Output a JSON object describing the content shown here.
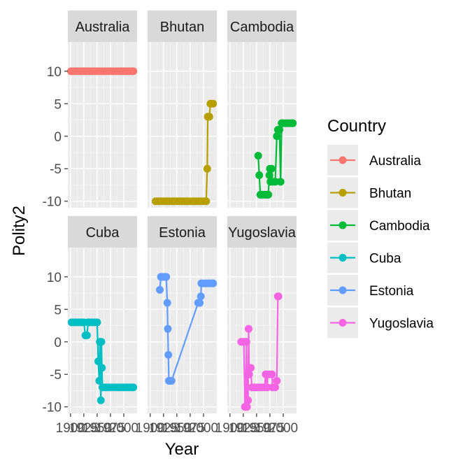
{
  "chart_data": {
    "type": "line",
    "facet_wrap": true,
    "xlabel": "Year",
    "ylabel": "Polity2",
    "xlim": [
      1895,
      2025
    ],
    "ylim": [
      -11,
      14.5
    ],
    "x_ticks": [
      1900,
      1925,
      1950,
      1975,
      2000
    ],
    "x_tick_labels": [
      "1900",
      "1925",
      "1950",
      "1975",
      "2000"
    ],
    "y_ticks": [
      -10,
      -5,
      0,
      5,
      10
    ],
    "y_tick_labels": [
      "-10",
      "-5",
      "0",
      "5",
      "10"
    ],
    "grid": true,
    "legend": {
      "title": "Country",
      "position": "right"
    },
    "series": [
      {
        "name": "Australia",
        "color": "#F8766D",
        "points": [
          [
            1901,
            10
          ],
          [
            1905,
            10
          ],
          [
            1910,
            10
          ],
          [
            1915,
            10
          ],
          [
            1920,
            10
          ],
          [
            1925,
            10
          ],
          [
            1930,
            10
          ],
          [
            1935,
            10
          ],
          [
            1940,
            10
          ],
          [
            1945,
            10
          ],
          [
            1950,
            10
          ],
          [
            1955,
            10
          ],
          [
            1960,
            10
          ],
          [
            1965,
            10
          ],
          [
            1970,
            10
          ],
          [
            1975,
            10
          ],
          [
            1980,
            10
          ],
          [
            1985,
            10
          ],
          [
            1990,
            10
          ],
          [
            1995,
            10
          ],
          [
            2000,
            10
          ],
          [
            2005,
            10
          ],
          [
            2010,
            10
          ],
          [
            2015,
            10
          ],
          [
            2018,
            10
          ]
        ]
      },
      {
        "name": "Bhutan",
        "color": "#B79F00",
        "points": [
          [
            1910,
            -10
          ],
          [
            1915,
            -10
          ],
          [
            1920,
            -10
          ],
          [
            1925,
            -10
          ],
          [
            1930,
            -10
          ],
          [
            1935,
            -10
          ],
          [
            1940,
            -10
          ],
          [
            1945,
            -10
          ],
          [
            1950,
            -10
          ],
          [
            1955,
            -10
          ],
          [
            1960,
            -10
          ],
          [
            1965,
            -10
          ],
          [
            1970,
            -10
          ],
          [
            1975,
            -10
          ],
          [
            1980,
            -10
          ],
          [
            1985,
            -10
          ],
          [
            1990,
            -10
          ],
          [
            1995,
            -10
          ],
          [
            2000,
            -10
          ],
          [
            2005,
            -10
          ],
          [
            2007,
            -5
          ],
          [
            2008,
            3
          ],
          [
            2011,
            3
          ],
          [
            2013,
            5
          ],
          [
            2018,
            5
          ]
        ]
      },
      {
        "name": "Cambodia",
        "color": "#00BA38",
        "points": [
          [
            1953,
            -3
          ],
          [
            1955,
            -6
          ],
          [
            1957,
            -9
          ],
          [
            1960,
            -9
          ],
          [
            1965,
            -9
          ],
          [
            1968,
            -9
          ],
          [
            1970,
            -9
          ],
          [
            1972,
            -9
          ],
          [
            1974,
            -6
          ],
          [
            1975,
            -5
          ],
          [
            1976,
            -7
          ],
          [
            1978,
            -5
          ],
          [
            1980,
            -7
          ],
          [
            1985,
            -7
          ],
          [
            1988,
            0
          ],
          [
            1990,
            1
          ],
          [
            1993,
            1
          ],
          [
            1995,
            -7
          ],
          [
            1997,
            2
          ],
          [
            2000,
            2
          ],
          [
            2005,
            2
          ],
          [
            2010,
            2
          ],
          [
            2015,
            2
          ],
          [
            2018,
            2
          ]
        ]
      },
      {
        "name": "Cuba",
        "color": "#00BFC4",
        "points": [
          [
            1902,
            3
          ],
          [
            1905,
            3
          ],
          [
            1910,
            3
          ],
          [
            1915,
            3
          ],
          [
            1920,
            3
          ],
          [
            1925,
            3
          ],
          [
            1928,
            1
          ],
          [
            1931,
            1
          ],
          [
            1933,
            3
          ],
          [
            1935,
            3
          ],
          [
            1940,
            3
          ],
          [
            1945,
            3
          ],
          [
            1950,
            3
          ],
          [
            1952,
            -3
          ],
          [
            1954,
            -6
          ],
          [
            1955,
            0
          ],
          [
            1957,
            -9
          ],
          [
            1958,
            0
          ],
          [
            1959,
            -4
          ],
          [
            1960,
            -7
          ],
          [
            1965,
            -7
          ],
          [
            1970,
            -7
          ],
          [
            1975,
            -7
          ],
          [
            1980,
            -7
          ],
          [
            1985,
            -7
          ],
          [
            1990,
            -7
          ],
          [
            1995,
            -7
          ],
          [
            2000,
            -7
          ],
          [
            2005,
            -7
          ],
          [
            2010,
            -7
          ],
          [
            2015,
            -7
          ],
          [
            2018,
            -7
          ]
        ]
      },
      {
        "name": "Estonia",
        "color": "#619CFF",
        "points": [
          [
            1918,
            8
          ],
          [
            1920,
            10
          ],
          [
            1922,
            10
          ],
          [
            1925,
            10
          ],
          [
            1928,
            10
          ],
          [
            1930,
            10
          ],
          [
            1932,
            6
          ],
          [
            1933,
            2
          ],
          [
            1934,
            -2
          ],
          [
            1935,
            -6
          ],
          [
            1936,
            -6
          ],
          [
            1938,
            -6
          ],
          [
            1940,
            -6
          ],
          [
            1990,
            6
          ],
          [
            1991,
            6
          ],
          [
            1993,
            6
          ],
          [
            1995,
            7
          ],
          [
            1996,
            9
          ],
          [
            2000,
            9
          ],
          [
            2005,
            9
          ],
          [
            2010,
            9
          ],
          [
            2015,
            9
          ],
          [
            2018,
            9
          ]
        ]
      },
      {
        "name": "Yugoslavia",
        "color": "#F564E3",
        "points": [
          [
            1921,
            0
          ],
          [
            1923,
            0
          ],
          [
            1926,
            0
          ],
          [
            1928,
            -10
          ],
          [
            1929,
            -10
          ],
          [
            1931,
            0
          ],
          [
            1932,
            -10
          ],
          [
            1933,
            -5
          ],
          [
            1934,
            -9
          ],
          [
            1935,
            2
          ],
          [
            1936,
            -5
          ],
          [
            1939,
            -4
          ],
          [
            1941,
            -7
          ],
          [
            1945,
            -7
          ],
          [
            1950,
            -7
          ],
          [
            1955,
            -7
          ],
          [
            1960,
            -7
          ],
          [
            1965,
            -7
          ],
          [
            1967,
            -5
          ],
          [
            1970,
            -7
          ],
          [
            1971,
            -5
          ],
          [
            1975,
            -5
          ],
          [
            1979,
            -5
          ],
          [
            1980,
            -7
          ],
          [
            1985,
            -7
          ],
          [
            1988,
            -6
          ],
          [
            1990,
            7
          ],
          [
            1991,
            7
          ]
        ]
      }
    ]
  }
}
